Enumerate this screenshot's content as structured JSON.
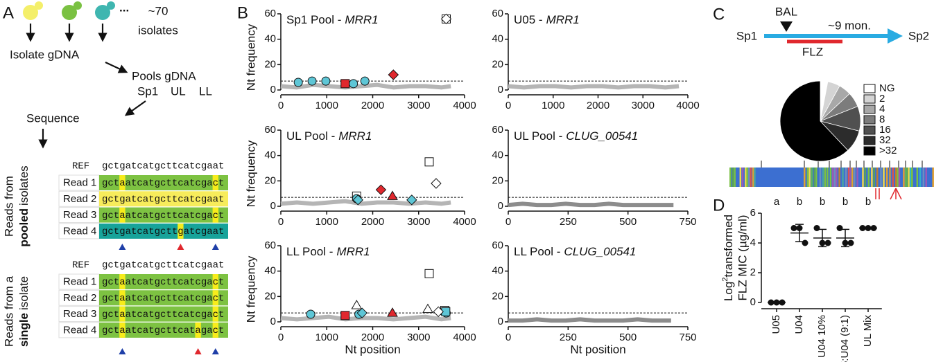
{
  "panel_a": {
    "label": "A",
    "ellipsis": "...",
    "isolates_count": "~70",
    "isolates": "isolates",
    "isolate_gdna": "Isolate gDNA",
    "pools_gdna": "Pools gDNA",
    "pools": [
      "Sp1",
      "UL",
      "LL"
    ],
    "sequence": "Sequence",
    "pooled": {
      "title_pre": "Reads from",
      "title_bold": "pooled",
      "title_post": "isolates",
      "ref_label": "REF",
      "ref": "gctgatcatgcttcatcgaat",
      "reads": [
        {
          "label": "Read 1",
          "seq": "gctaatcatgcttcatcgact",
          "color": "#7dc242"
        },
        {
          "label": "Read 2",
          "seq": "gctgatcatgcttcatcgaat",
          "color": "#f7ec5b"
        },
        {
          "label": "Read 3",
          "seq": "gctaatcatgcttcatcgact",
          "color": "#7dc242"
        },
        {
          "label": "Read 4",
          "seq": "gctgatcatgcttgatcgaat",
          "color": "#17a39a"
        }
      ]
    },
    "single": {
      "title_pre": "Reads from a",
      "title_bold": "single",
      "title_post": "isolate",
      "ref_label": "REF",
      "ref": "gctgatcatgcttcatcgaat",
      "reads": [
        {
          "label": "Read 1",
          "seq": "gctaatcatgcttcatcgact",
          "color": "#7dc242"
        },
        {
          "label": "Read 2",
          "seq": "gctaatcatgcttcatcgact",
          "color": "#7dc242"
        },
        {
          "label": "Read 3",
          "seq": "gctaatcatgcttcatcgact",
          "color": "#7dc242"
        },
        {
          "label": "Read 4",
          "seq": "gctaatcatgcttcatagact",
          "color": "#7dc242"
        }
      ]
    }
  },
  "panel_b": {
    "label": "B"
  },
  "panel_c": {
    "label": "C",
    "bal": "BAL",
    "duration": "~9 mon.",
    "start": "Sp1",
    "end": "Sp2",
    "drug": "FLZ"
  },
  "panel_d": {
    "label": "D"
  },
  "chart_data": [
    {
      "type": "scatter",
      "title": "Sp1 Pool -",
      "gene": "MRR1",
      "ylabel": "Nt frequency",
      "xlim": [
        0,
        4000
      ],
      "xticks": [
        0,
        1000,
        2000,
        3000,
        4000
      ],
      "ylim": [
        0,
        60
      ],
      "yticks": [
        0,
        20,
        40,
        60
      ],
      "threshold": 7,
      "series": [
        {
          "marker": "line",
          "color": "#b5b5b5",
          "x": [
            0,
            350,
            700,
            1050,
            1400,
            1750,
            2100,
            2450,
            2800,
            3150,
            3500,
            3700
          ],
          "values": [
            3,
            2,
            4,
            3,
            2,
            3,
            4,
            2,
            3,
            3,
            2,
            3
          ]
        },
        {
          "marker": "circle",
          "color": "#5ec6d6",
          "x": [
            380,
            680,
            980,
            1580,
            1830
          ],
          "values": [
            6,
            7,
            7,
            5,
            7
          ]
        },
        {
          "marker": "square",
          "color": "#e0282e",
          "x": [
            1400
          ],
          "values": [
            5
          ]
        },
        {
          "marker": "diamond",
          "color": "#e0282e",
          "x": [
            2450
          ],
          "values": [
            12
          ]
        },
        {
          "marker": "square",
          "color": "#ffffff",
          "x": [
            3600
          ],
          "values": [
            56
          ]
        },
        {
          "marker": "diamond",
          "color": "#ffffff",
          "x": [
            3600
          ],
          "values": [
            56
          ]
        }
      ]
    },
    {
      "type": "scatter",
      "title": "U05 -",
      "gene": "MRR1",
      "xlim": [
        0,
        4000
      ],
      "xticks": [
        0,
        1000,
        2000,
        3000,
        4000
      ],
      "ylim": [
        0,
        60
      ],
      "yticks": [
        0,
        20,
        40,
        60
      ],
      "threshold": 7,
      "series": [
        {
          "marker": "line",
          "color": "#b5b5b5",
          "x": [
            0,
            350,
            700,
            1050,
            1400,
            1750,
            2100,
            2450,
            2800,
            3150,
            3500,
            3800
          ],
          "values": [
            3,
            2,
            3,
            3,
            2,
            3,
            3,
            2,
            3,
            3,
            2,
            3
          ]
        }
      ]
    },
    {
      "type": "scatter",
      "title": "UL Pool -",
      "gene": "MRR1",
      "ylabel": "Nt frequency",
      "xlim": [
        0,
        4000
      ],
      "xticks": [
        0,
        1000,
        2000,
        3000,
        4000
      ],
      "ylim": [
        0,
        60
      ],
      "yticks": [
        0,
        20,
        40,
        60
      ],
      "threshold": 7,
      "series": [
        {
          "marker": "line",
          "color": "#b5b5b5",
          "x": [
            0,
            350,
            700,
            1050,
            1400,
            1750,
            2100,
            2450,
            2800,
            3150,
            3500,
            3700
          ],
          "values": [
            2,
            3,
            2,
            3,
            4,
            2,
            3,
            3,
            2,
            3,
            2,
            3
          ]
        },
        {
          "marker": "square",
          "color": "#ffffff",
          "x": [
            1650
          ],
          "values": [
            8
          ]
        },
        {
          "marker": "circle",
          "color": "#5ec6d6",
          "x": [
            1650
          ],
          "values": [
            6
          ]
        },
        {
          "marker": "diamond",
          "color": "#5ec6d6",
          "x": [
            1680,
            2850
          ],
          "values": [
            5,
            5
          ]
        },
        {
          "marker": "diamond",
          "color": "#e0282e",
          "x": [
            2180
          ],
          "values": [
            13
          ]
        },
        {
          "marker": "triangle",
          "color": "#e0282e",
          "x": [
            2430
          ],
          "values": [
            8
          ]
        },
        {
          "marker": "square",
          "color": "#ffffff",
          "x": [
            3230
          ],
          "values": [
            35
          ]
        },
        {
          "marker": "diamond",
          "color": "#ffffff",
          "x": [
            3380
          ],
          "values": [
            18
          ]
        }
      ]
    },
    {
      "type": "scatter",
      "title": "UL Pool -",
      "gene": "CLUG_00541",
      "xlim": [
        0,
        750
      ],
      "xticks": [
        0,
        250,
        500,
        750
      ],
      "ylim": [
        0,
        60
      ],
      "yticks": [
        0,
        20,
        40,
        60
      ],
      "threshold": 7,
      "series": [
        {
          "marker": "line",
          "color": "#8c8c8c",
          "x": [
            0,
            60,
            120,
            180,
            240,
            300,
            360,
            420,
            480,
            540,
            600,
            690
          ],
          "values": [
            1,
            2,
            1,
            1,
            2,
            1,
            1,
            2,
            1,
            1,
            1,
            1
          ]
        }
      ]
    },
    {
      "type": "scatter",
      "title": "LL Pool -",
      "gene": "MRR1",
      "ylabel": "Nt frequency",
      "xlabel": "Nt position",
      "xlim": [
        0,
        4000
      ],
      "xticks": [
        0,
        1000,
        2000,
        3000,
        4000
      ],
      "ylim": [
        0,
        60
      ],
      "yticks": [
        0,
        20,
        40,
        60
      ],
      "threshold": 7,
      "series": [
        {
          "marker": "line",
          "color": "#b5b5b5",
          "x": [
            0,
            350,
            700,
            1050,
            1400,
            1750,
            2100,
            2450,
            2800,
            3150,
            3500,
            3700
          ],
          "values": [
            3,
            2,
            3,
            4,
            2,
            3,
            3,
            2,
            3,
            4,
            2,
            3
          ]
        },
        {
          "marker": "circle",
          "color": "#5ec6d6",
          "x": [
            650,
            1700,
            3600
          ],
          "values": [
            6,
            6,
            7
          ]
        },
        {
          "marker": "square",
          "color": "#e0282e",
          "x": [
            1400
          ],
          "values": [
            5
          ]
        },
        {
          "marker": "triangle",
          "color": "#ffffff",
          "x": [
            1650,
            3200
          ],
          "values": [
            13,
            10
          ]
        },
        {
          "marker": "diamond",
          "color": "#5ec6d6",
          "x": [
            1770
          ],
          "values": [
            7
          ]
        },
        {
          "marker": "triangle",
          "color": "#e0282e",
          "x": [
            2430
          ],
          "values": [
            7
          ]
        },
        {
          "marker": "square",
          "color": "#ffffff",
          "x": [
            3230,
            3570
          ],
          "values": [
            38,
            9
          ]
        },
        {
          "marker": "square",
          "color": "#5ec6d6",
          "x": [
            3590
          ],
          "values": [
            8
          ]
        },
        {
          "marker": "diamond",
          "color": "#ffffff",
          "x": [
            3430
          ],
          "values": [
            8
          ]
        }
      ]
    },
    {
      "type": "scatter",
      "title": "LL Pool -",
      "gene": "CLUG_00541",
      "xlabel": "Nt position",
      "xlim": [
        0,
        750
      ],
      "xticks": [
        0,
        250,
        500,
        750
      ],
      "ylim": [
        0,
        60
      ],
      "yticks": [
        0,
        20,
        40,
        60
      ],
      "threshold": 7,
      "series": [
        {
          "marker": "line",
          "color": "#8c8c8c",
          "x": [
            0,
            60,
            120,
            180,
            240,
            300,
            360,
            420,
            480,
            540,
            600,
            680
          ],
          "values": [
            1,
            1,
            2,
            1,
            1,
            2,
            1,
            1,
            1,
            2,
            1,
            1
          ]
        }
      ]
    },
    {
      "type": "pie",
      "categories": [
        "NG",
        "2",
        "4",
        "8",
        "16",
        "32",
        ">32"
      ],
      "values": [
        3,
        5,
        5,
        6,
        10,
        9,
        62
      ],
      "colors": [
        "#ffffff",
        "#d4d4d4",
        "#a8a8a8",
        "#7c7c7c",
        "#505050",
        "#2c2c2c",
        "#000000"
      ],
      "legend": "right"
    },
    {
      "type": "dot",
      "ylabel_log": "Log",
      "ylabel_exp": "2",
      "ylabel_rest": "transformed",
      "ylabel2": "FLZ MIC (µg/ml)",
      "categories": [
        "U05",
        "U04",
        "U04 10%",
        "U05:U04 (9:1)",
        "UL Mix"
      ],
      "values": [
        [
          0,
          0,
          0
        ],
        [
          5,
          5,
          4
        ],
        [
          5,
          4,
          4
        ],
        [
          5,
          4,
          4
        ],
        [
          5,
          5,
          5
        ]
      ],
      "means": [
        0,
        4.67,
        4.33,
        4.33,
        5
      ],
      "errors": [
        0,
        0.58,
        0.58,
        0.58,
        0
      ],
      "group_labels": [
        "a",
        "b",
        "b",
        "b",
        "b"
      ],
      "ylim": [
        0,
        6
      ],
      "yticks": [
        0,
        2,
        4,
        6
      ]
    }
  ]
}
